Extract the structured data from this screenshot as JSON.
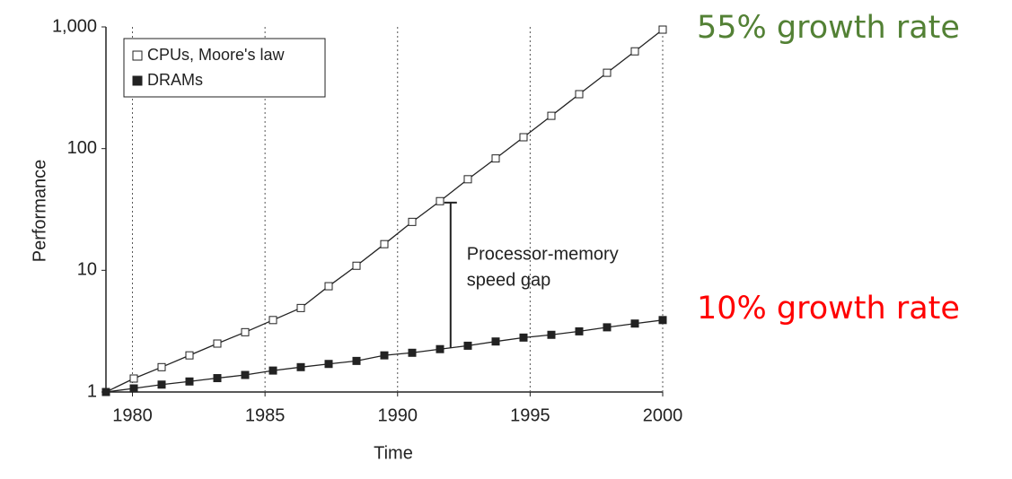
{
  "chart_data": {
    "type": "line",
    "x_label": "Time",
    "y_label": "Performance",
    "log_y": true,
    "grid": "x",
    "legend": "top-left",
    "xlim": [
      1979,
      2000
    ],
    "xticks": [
      1980,
      1985,
      1990,
      1995,
      2000
    ],
    "ylim": [
      1,
      1000
    ],
    "yticks": [
      1,
      10,
      100,
      {
        "value": 1000,
        "label": "1,000"
      }
    ],
    "x": [
      1979,
      1980.05,
      1981.1,
      1982.15,
      1983.2,
      1984.25,
      1985.3,
      1986.35,
      1987.4,
      1988.45,
      1989.5,
      1990.55,
      1991.6,
      1992.65,
      1993.7,
      1994.75,
      1995.8,
      1996.85,
      1997.9,
      1998.95,
      2000
    ],
    "series": [
      {
        "name": "CPUs, Moore's law",
        "color": "#222222",
        "marker": "hollow",
        "values": [
          1,
          1.29,
          1.6,
          2.0,
          2.5,
          3.1,
          3.9,
          4.9,
          7.4,
          10.9,
          16.4,
          25,
          37,
          56,
          83,
          124,
          186,
          280,
          420,
          630,
          950
        ]
      },
      {
        "name": "DRAMs",
        "color": "#222222",
        "marker": "filled",
        "values": [
          1,
          1.07,
          1.15,
          1.22,
          1.3,
          1.38,
          1.5,
          1.6,
          1.7,
          1.8,
          2.0,
          2.1,
          2.25,
          2.4,
          2.6,
          2.8,
          2.95,
          3.15,
          3.4,
          3.65,
          3.9
        ]
      }
    ],
    "annotation": {
      "lines": [
        "Processor-memory",
        "speed gap"
      ],
      "x": 1992,
      "y_range": [
        2.3,
        36
      ]
    },
    "side_labels": [
      {
        "text": "55% growth rate",
        "color": "#538135"
      },
      {
        "text": "10% growth rate",
        "color": "#ff0000"
      }
    ]
  }
}
